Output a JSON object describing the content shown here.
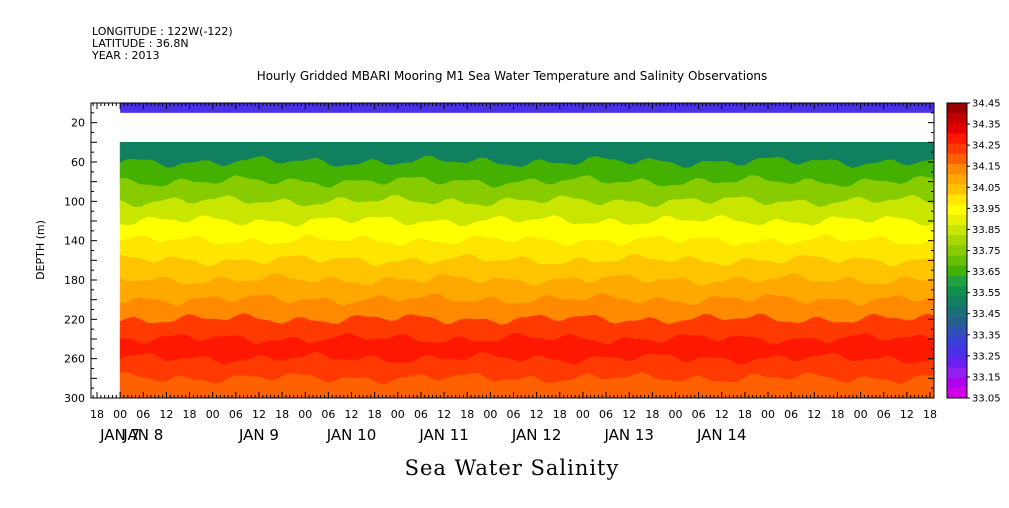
{
  "header": {
    "longitude": "LONGITUDE : 122W(-122)",
    "latitude": "LATITUDE : 36.8N",
    "year": "YEAR : 2013"
  },
  "chart_data": {
    "type": "heatmap",
    "title": "Hourly Gridded MBARI Mooring M1 Sea Water Temperature and Salinity Observations",
    "variable_label": "Sea Water Salinity",
    "ylabel": "DEPTH (m)",
    "ylim": [
      300,
      0
    ],
    "y_ticks": [
      20,
      60,
      100,
      140,
      180,
      220,
      260,
      300
    ],
    "x_tick_labels": [
      "18",
      "00",
      "06",
      "12",
      "18",
      "00",
      "06",
      "12",
      "18",
      "00",
      "06",
      "12",
      "18",
      "00",
      "06",
      "12",
      "18",
      "00",
      "06",
      "12",
      "18",
      "00",
      "06",
      "12",
      "18",
      "00",
      "06",
      "12",
      "18",
      "00",
      "06",
      "12",
      "18",
      "00",
      "06",
      "12",
      "18"
    ],
    "x_day_labels": [
      {
        "label": "JAN  7",
        "tick_index": 1
      },
      {
        "label": "JAN  8",
        "tick_index": 2
      },
      {
        "label": "JAN  9",
        "tick_index": 7
      },
      {
        "label": "JAN 10",
        "tick_index": 11
      },
      {
        "label": "JAN 11",
        "tick_index": 15
      },
      {
        "label": "JAN 12",
        "tick_index": 19
      },
      {
        "label": "JAN 13",
        "tick_index": 23
      },
      {
        "label": "JAN 14",
        "tick_index": 27
      }
    ],
    "data_start_tick_index": 1,
    "surface_layer": {
      "depth_top": 0,
      "depth_bottom": 10,
      "value": 33.25
    },
    "no_data_gap": {
      "depth_top": 10,
      "depth_bottom": 40
    },
    "salinity_profile": [
      {
        "depth": 40,
        "value": 33.48
      },
      {
        "depth": 60,
        "value": 33.58
      },
      {
        "depth": 80,
        "value": 33.68
      },
      {
        "depth": 100,
        "value": 33.78
      },
      {
        "depth": 120,
        "value": 33.88
      },
      {
        "depth": 140,
        "value": 33.98
      },
      {
        "depth": 160,
        "value": 34.04
      },
      {
        "depth": 180,
        "value": 34.07
      },
      {
        "depth": 200,
        "value": 34.12
      },
      {
        "depth": 220,
        "value": 34.18
      },
      {
        "depth": 240,
        "value": 34.24
      },
      {
        "depth": 250,
        "value": 34.3
      },
      {
        "depth": 260,
        "value": 34.28
      },
      {
        "depth": 280,
        "value": 34.2
      },
      {
        "depth": 300,
        "value": 34.14
      }
    ],
    "colorbar": {
      "labels": [
        "34.45",
        "34.35",
        "34.25",
        "34.15",
        "34.05",
        "33.95",
        "33.85",
        "33.75",
        "33.65",
        "33.55",
        "33.45",
        "33.35",
        "33.25",
        "33.15",
        "33.05"
      ],
      "colors": [
        "#9b0000",
        "#c40000",
        "#e20000",
        "#ff1800",
        "#ff3a00",
        "#ff6000",
        "#ff8a00",
        "#ffa800",
        "#ffc400",
        "#ffe600",
        "#ffff00",
        "#e8f200",
        "#c8e600",
        "#a8d800",
        "#88cc00",
        "#66c000",
        "#44b000",
        "#22a040",
        "#10904a",
        "#108060",
        "#1a7076",
        "#245f90",
        "#3050b8",
        "#3a40d8",
        "#4a30e8",
        "#6a20f0",
        "#9020f0",
        "#b000f0",
        "#d000e8"
      ]
    },
    "grid": false,
    "legend": "colorbar-right"
  }
}
